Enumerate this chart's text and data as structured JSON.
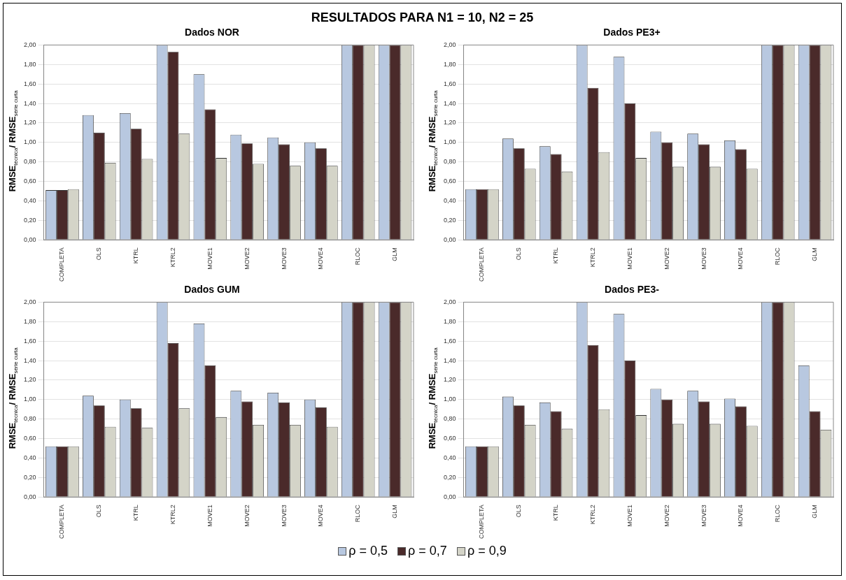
{
  "chart_data": [
    {
      "type": "other",
      "title": "RESULTADOS PARA N1 = 10, N2 = 25"
    },
    {
      "type": "bar",
      "title": "Dados NOR",
      "ylabel": "RMSE$_{técnica}$/ RMSE$_{série curta}$",
      "categories": [
        "COMPLETA",
        "OLS",
        "KTRL",
        "KTRL2",
        "MOVE1",
        "MOVE2",
        "MOVE3",
        "MOVE4",
        "RLOC",
        "GLM"
      ],
      "ylim": [
        0,
        2
      ],
      "yticks": [
        {
          "value": 0,
          "label": "0,00"
        },
        {
          "value": 0.2,
          "label": "0,20"
        },
        {
          "value": 0.4,
          "label": "0,40"
        },
        {
          "value": 0.6,
          "label": "0,60"
        },
        {
          "value": 0.8,
          "label": "0,80"
        },
        {
          "value": 1,
          "label": "1,00"
        },
        {
          "value": 1.2,
          "label": "1,20"
        },
        {
          "value": 1.4,
          "label": "1,40"
        },
        {
          "value": 1.6,
          "label": "1,60"
        },
        {
          "value": 1.8,
          "label": "1,80"
        },
        {
          "value": 2,
          "label": "2,00"
        }
      ],
      "grid": "y",
      "legend": false,
      "series": [
        {
          "color": "#b8c8e0",
          "values": [
            0.51,
            1.28,
            1.3,
            2,
            1.7,
            1.08,
            1.05,
            1.0,
            2,
            2
          ]
        },
        {
          "color": "#4a2a2a",
          "values": [
            0.51,
            1.1,
            1.14,
            1.93,
            1.34,
            0.99,
            0.98,
            0.94,
            2,
            2
          ]
        },
        {
          "color": "#d4d4c8",
          "values": [
            0.52,
            0.79,
            0.83,
            1.09,
            0.84,
            0.78,
            0.76,
            0.76,
            2,
            2
          ]
        }
      ]
    },
    {
      "type": "bar",
      "title": "Dados PE3+",
      "ylabel": "RMSE$_{técnica}$/ RMSE$_{série curta}$",
      "categories": [
        "COMPLETA",
        "OLS",
        "KTRL",
        "KTRL2",
        "MOVE1",
        "MOVE2",
        "MOVE3",
        "MOVE4",
        "RLOC",
        "GLM"
      ],
      "ylim": [
        0,
        2
      ],
      "yticks": [
        {
          "value": 0,
          "label": "0,00"
        },
        {
          "value": 0.2,
          "label": "0,20"
        },
        {
          "value": 0.4,
          "label": "0,40"
        },
        {
          "value": 0.6,
          "label": "0,60"
        },
        {
          "value": 0.8,
          "label": "0,80"
        },
        {
          "value": 1,
          "label": "1,00"
        },
        {
          "value": 1.2,
          "label": "1,20"
        },
        {
          "value": 1.4,
          "label": "1,40"
        },
        {
          "value": 1.6,
          "label": "1,60"
        },
        {
          "value": 1.8,
          "label": "1,80"
        },
        {
          "value": 2,
          "label": "2,00"
        }
      ],
      "grid": "y",
      "legend": false,
      "series": [
        {
          "color": "#b8c8e0",
          "values": [
            0.52,
            1.04,
            0.96,
            2,
            1.88,
            1.11,
            1.09,
            1.02,
            2,
            2
          ]
        },
        {
          "color": "#4a2a2a",
          "values": [
            0.52,
            0.94,
            0.88,
            1.56,
            1.4,
            1.0,
            0.98,
            0.93,
            2,
            2
          ]
        },
        {
          "color": "#d4d4c8",
          "values": [
            0.52,
            0.73,
            0.7,
            0.9,
            0.84,
            0.75,
            0.75,
            0.73,
            2,
            2
          ]
        }
      ]
    },
    {
      "type": "bar",
      "title": "Dados GUM",
      "ylabel": "RMSE$_{técnica}$/ RMSE$_{série curta}$",
      "categories": [
        "COMPLETA",
        "OLS",
        "KTRL",
        "KTRL2",
        "MOVE1",
        "MOVE2",
        "MOVE3",
        "MOVE4",
        "RLOC",
        "GLM"
      ],
      "ylim": [
        0,
        2
      ],
      "yticks": [
        {
          "value": 0,
          "label": "0,00"
        },
        {
          "value": 0.2,
          "label": "0,20"
        },
        {
          "value": 0.4,
          "label": "0,40"
        },
        {
          "value": 0.6,
          "label": "0,60"
        },
        {
          "value": 0.8,
          "label": "0,80"
        },
        {
          "value": 1,
          "label": "1,00"
        },
        {
          "value": 1.2,
          "label": "1,20"
        },
        {
          "value": 1.4,
          "label": "1,40"
        },
        {
          "value": 1.6,
          "label": "1,60"
        },
        {
          "value": 1.8,
          "label": "1,80"
        },
        {
          "value": 2,
          "label": "2,00"
        }
      ],
      "grid": "y",
      "legend": false,
      "series": [
        {
          "color": "#b8c8e0",
          "values": [
            0.52,
            1.04,
            1.0,
            2,
            1.78,
            1.09,
            1.07,
            1.0,
            2,
            2
          ]
        },
        {
          "color": "#4a2a2a",
          "values": [
            0.52,
            0.94,
            0.91,
            1.58,
            1.35,
            0.98,
            0.97,
            0.92,
            2,
            2
          ]
        },
        {
          "color": "#d4d4c8",
          "values": [
            0.52,
            0.72,
            0.71,
            0.91,
            0.82,
            0.74,
            0.74,
            0.72,
            2,
            2
          ]
        }
      ]
    },
    {
      "type": "bar",
      "title": "Dados PE3-",
      "ylabel": "RMSE$_{técnica}$/ RMSE$_{série curta}$",
      "categories": [
        "COMPLETA",
        "OLS",
        "KTRL",
        "KTRL2",
        "MOVE1",
        "MOVE2",
        "MOVE3",
        "MOVE4",
        "RLOC",
        "GLM"
      ],
      "ylim": [
        0,
        2
      ],
      "yticks": [
        {
          "value": 0,
          "label": "0,00"
        },
        {
          "value": 0.2,
          "label": "0,20"
        },
        {
          "value": 0.4,
          "label": "0,40"
        },
        {
          "value": 0.6,
          "label": "0,60"
        },
        {
          "value": 0.8,
          "label": "0,80"
        },
        {
          "value": 1,
          "label": "1,00"
        },
        {
          "value": 1.2,
          "label": "1,20"
        },
        {
          "value": 1.4,
          "label": "1,40"
        },
        {
          "value": 1.6,
          "label": "1,60"
        },
        {
          "value": 1.8,
          "label": "1,80"
        },
        {
          "value": 2,
          "label": "2,00"
        }
      ],
      "grid": "y",
      "legend": "bottom",
      "series": [
        {
          "name": "ρ = 0,5",
          "color": "#b8c8e0",
          "values": [
            0.52,
            1.03,
            0.97,
            2,
            1.88,
            1.11,
            1.09,
            1.01,
            2,
            1.35
          ]
        },
        {
          "name": "ρ = 0,7",
          "color": "#4a2a2a",
          "values": [
            0.52,
            0.94,
            0.88,
            1.56,
            1.4,
            1.0,
            0.98,
            0.93,
            2,
            0.88
          ]
        },
        {
          "name": "ρ = 0,9",
          "color": "#d4d4c8",
          "values": [
            0.52,
            0.74,
            0.7,
            0.9,
            0.84,
            0.75,
            0.75,
            0.73,
            2,
            0.69
          ]
        }
      ]
    }
  ]
}
